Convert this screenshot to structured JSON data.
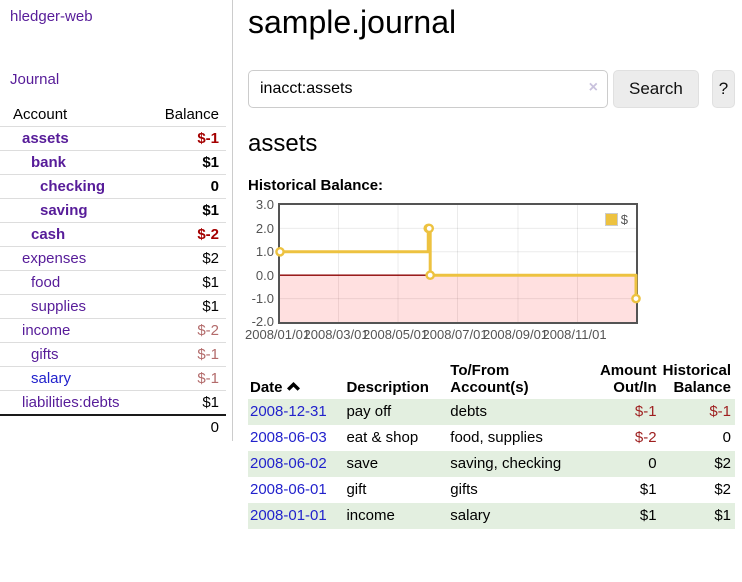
{
  "app": {
    "title": "hledger-web"
  },
  "sidebar": {
    "journal_link": "Journal",
    "table": {
      "headers": {
        "account": "Account",
        "balance": "Balance"
      },
      "rows": [
        {
          "name": "assets",
          "depth": 1,
          "bold": true,
          "balance": "$-1",
          "neg": "strong"
        },
        {
          "name": "bank",
          "depth": 2,
          "bold": true,
          "balance": "$1"
        },
        {
          "name": "checking",
          "depth": 3,
          "bold": true,
          "balance": "0"
        },
        {
          "name": "saving",
          "depth": 3,
          "bold": true,
          "balance": "$1"
        },
        {
          "name": "cash",
          "depth": 2,
          "bold": true,
          "balance": "$-2",
          "neg": "strong"
        },
        {
          "name": "expenses",
          "depth": 1,
          "bold": false,
          "balance": "$2"
        },
        {
          "name": "food",
          "depth": 2,
          "bold": false,
          "balance": "$1"
        },
        {
          "name": "supplies",
          "depth": 2,
          "bold": false,
          "balance": "$1"
        },
        {
          "name": "income",
          "depth": 1,
          "bold": false,
          "balance": "$-2",
          "neg": "soft"
        },
        {
          "name": "gifts",
          "depth": 2,
          "bold": false,
          "balance": "$-1",
          "neg": "soft"
        },
        {
          "name": "salary",
          "depth": 2,
          "bold": false,
          "balance": "$-1",
          "neg": "soft",
          "unvisited": true
        },
        {
          "name": "liabilities:debts",
          "depth": 1,
          "bold": false,
          "balance": "$1"
        }
      ],
      "total": "0"
    }
  },
  "header": {
    "title": "sample.journal"
  },
  "search": {
    "value": "inacct:assets",
    "clear_icon": "×",
    "button_label": "Search",
    "help_label": "?"
  },
  "account_page": {
    "title": "assets",
    "chart_label": "Historical Balance:"
  },
  "chart_data": {
    "type": "line",
    "title": "Historical Balance:",
    "step": true,
    "x_start": "2008-01-01",
    "x_end": "2008-12-31",
    "ylim": [
      -2,
      3
    ],
    "yticks": [
      3,
      2,
      1,
      0,
      -1,
      -2
    ],
    "xticks": [
      "2008/01/01",
      "2008/03/01",
      "2008/05/01",
      "2008/07/01",
      "2008/09/01",
      "2008/11/01"
    ],
    "legend": [
      {
        "label": "$",
        "color": "#edc240"
      }
    ],
    "series": [
      {
        "name": "$",
        "color": "#edc240",
        "points": [
          [
            "2008-01-01",
            1
          ],
          [
            "2008-06-01",
            2
          ],
          [
            "2008-06-02",
            2
          ],
          [
            "2008-06-03",
            0
          ],
          [
            "2008-12-31",
            -1
          ]
        ]
      }
    ],
    "negative_region_color": "rgba(255,0,0,0.12)",
    "zero_line_color": "#8b0000",
    "grid_color": "rgba(0,0,0,0.08)",
    "border_color": "#545454",
    "legend_position": "top-right"
  },
  "register": {
    "headers": {
      "date": "Date",
      "description": "Description",
      "tofrom": "To/From Account(s)",
      "amount": "Amount Out/In",
      "historical": "Historical Balance"
    },
    "rows": [
      {
        "date": "2008-12-31",
        "description": "pay off",
        "accounts": "debts",
        "amount": "$-1",
        "amount_neg": true,
        "balance": "$-1",
        "balance_neg": true,
        "shaded": true
      },
      {
        "date": "2008-06-03",
        "description": "eat & shop",
        "accounts": "food, supplies",
        "amount": "$-2",
        "amount_neg": true,
        "balance": "0",
        "balance_neg": false,
        "shaded": false
      },
      {
        "date": "2008-06-02",
        "description": "save",
        "accounts": "saving, checking",
        "amount": "0",
        "amount_neg": false,
        "balance": "$2",
        "balance_neg": false,
        "shaded": true
      },
      {
        "date": "2008-06-01",
        "description": "gift",
        "accounts": "gifts",
        "amount": "$1",
        "amount_neg": false,
        "balance": "$2",
        "balance_neg": false,
        "shaded": false
      },
      {
        "date": "2008-01-01",
        "description": "income",
        "accounts": "salary",
        "amount": "$1",
        "amount_neg": false,
        "balance": "$1",
        "balance_neg": false,
        "shaded": true
      }
    ]
  },
  "colors": {
    "link_purple": "#571c99",
    "link_blue": "#2222cc",
    "negative_strong": "#a40000",
    "negative_soft": "#b36b6b",
    "row_shade_green": "#e3efe0",
    "series_yellow": "#edc240"
  }
}
